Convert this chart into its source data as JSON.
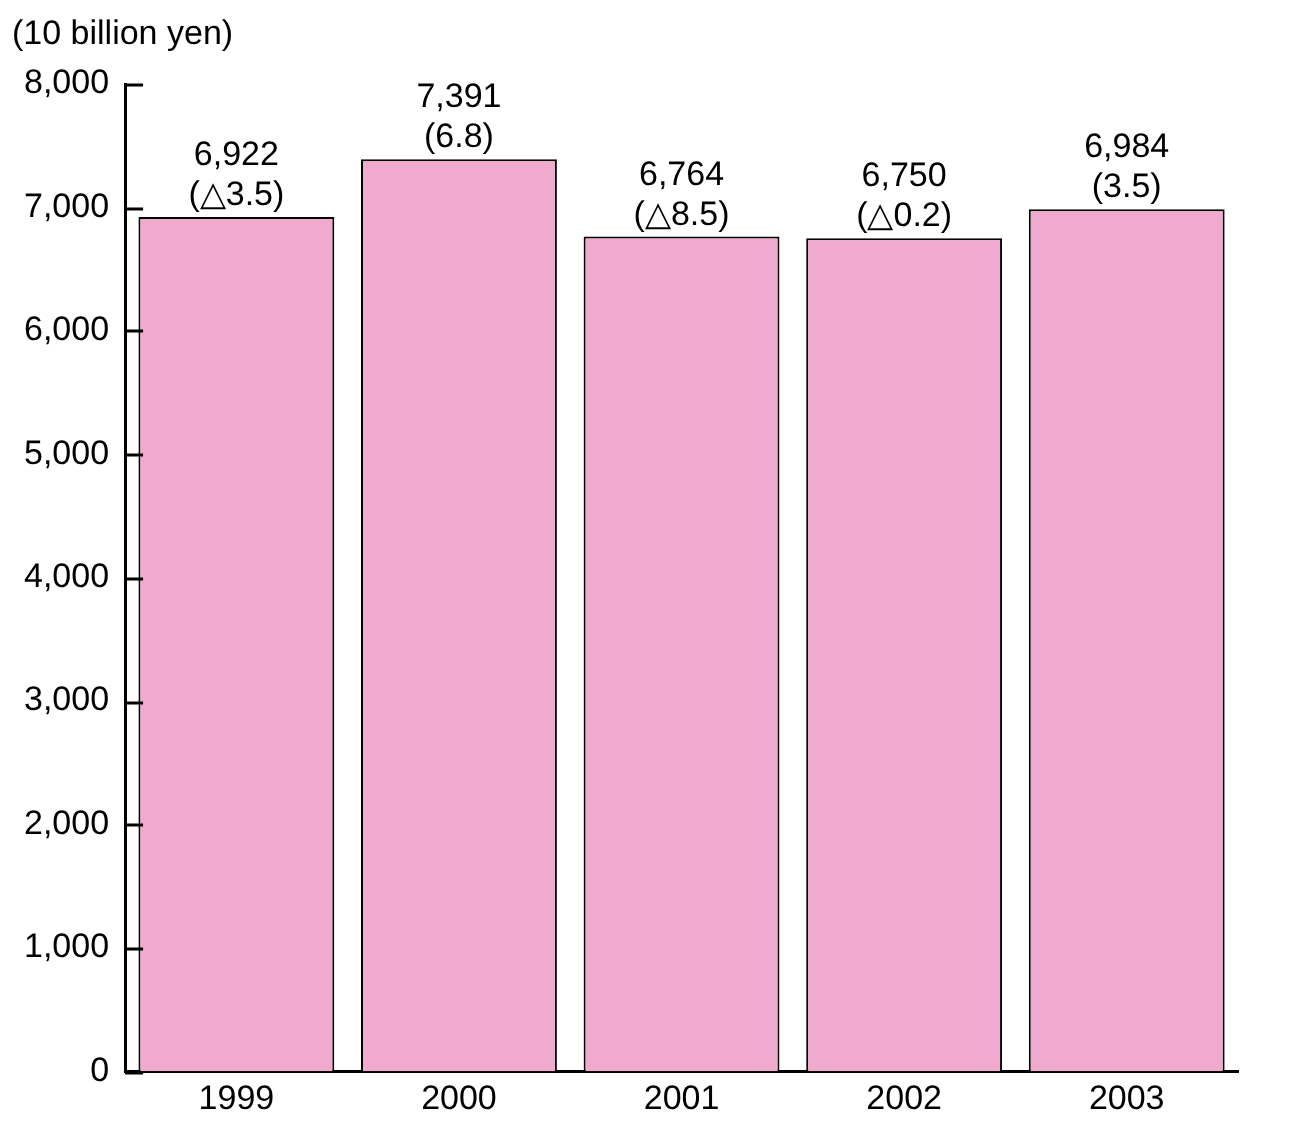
{
  "chart_data": {
    "type": "bar",
    "ylabel": "(10 billion yen)",
    "categories": [
      "1999",
      "2000",
      "2001",
      "2002",
      "2003"
    ],
    "values": [
      6922,
      7391,
      6764,
      6750,
      6984
    ],
    "value_labels": [
      "6,922\n(△3.5)",
      "7,391\n(6.8)",
      "6,764\n(△8.5)",
      "6,750\n(△0.2)",
      "6,984\n(3.5)"
    ],
    "color": "#f0aacd",
    "ylim": [
      0,
      8000
    ],
    "yticks": [
      0,
      {
        "value": 1000,
        "label": "1,000"
      },
      {
        "value": 2000,
        "label": "2,000"
      },
      {
        "value": 3000,
        "label": "3,000"
      },
      {
        "value": 4000,
        "label": "4,000"
      },
      {
        "value": 5000,
        "label": "5,000"
      },
      {
        "value": 6000,
        "label": "6,000"
      },
      {
        "value": 7000,
        "label": "7,000"
      },
      {
        "value": 8000,
        "label": "8,000"
      }
    ],
    "grid": false,
    "legend": false
  }
}
